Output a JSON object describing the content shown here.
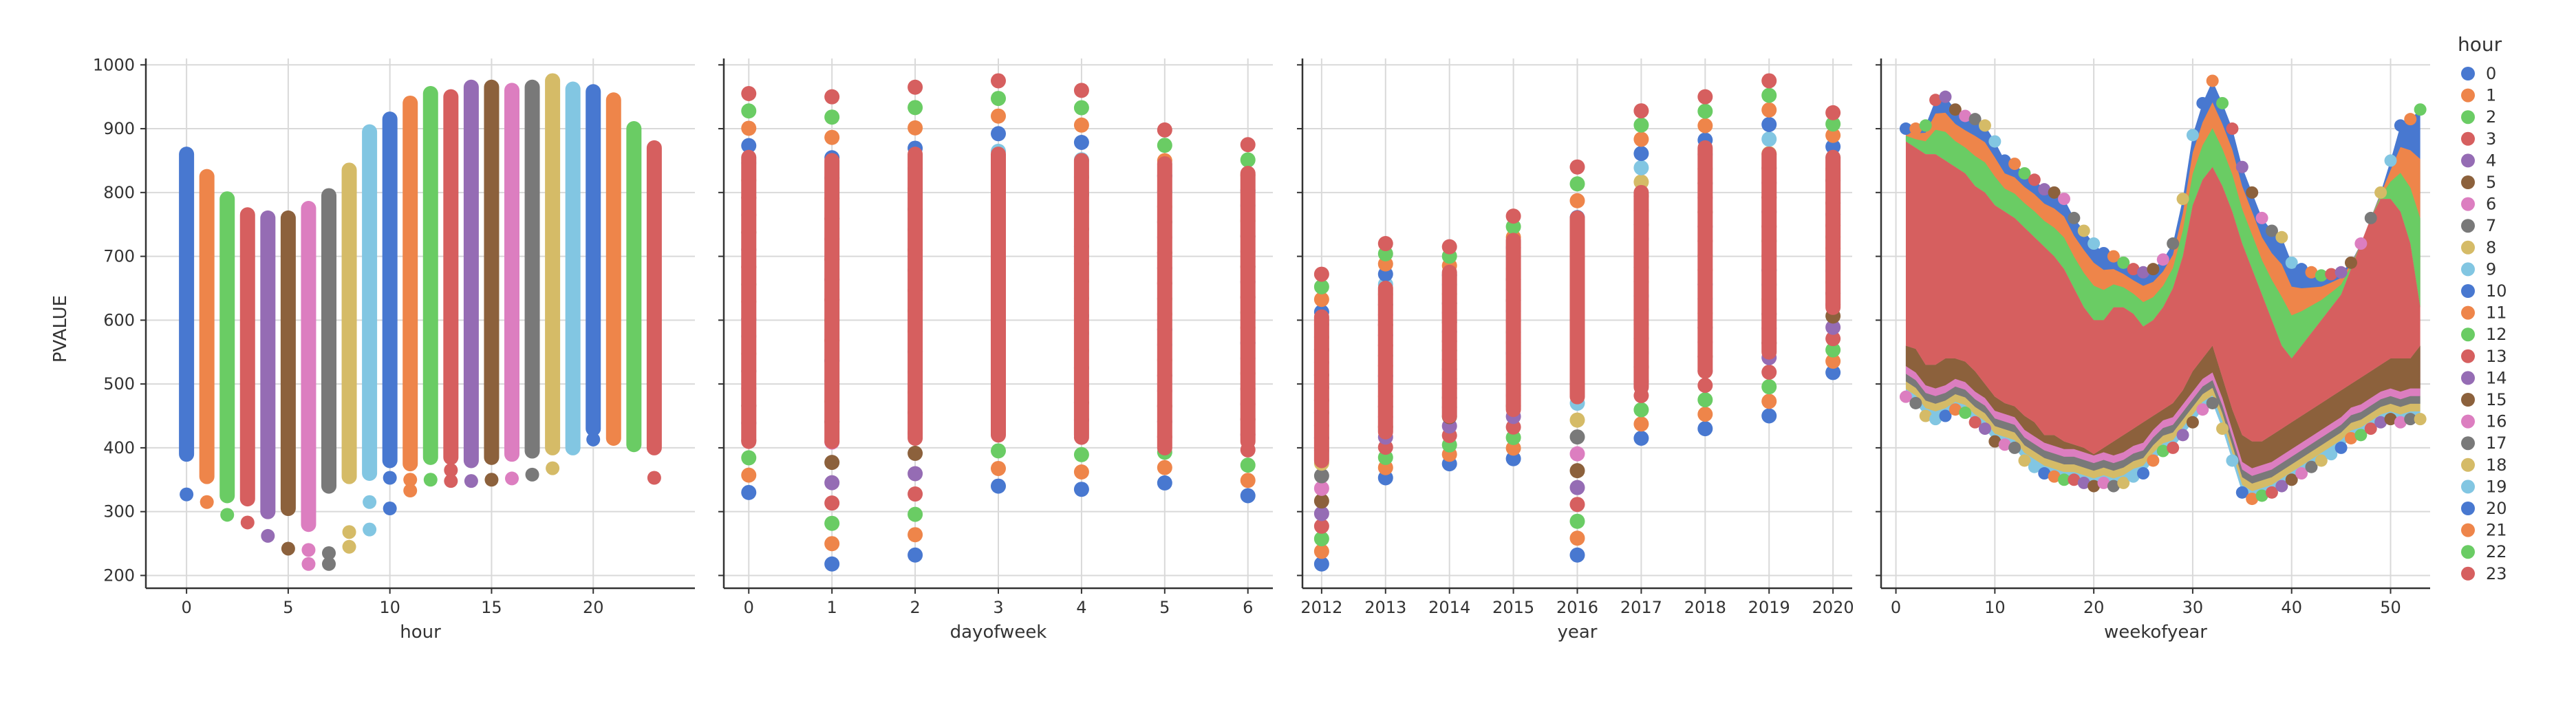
{
  "palette": [
    "#4878d0",
    "#ee854a",
    "#6acc64",
    "#d65f5f",
    "#956cb4",
    "#8c613c",
    "#dc7ec0",
    "#797979",
    "#d5bb67",
    "#82c6e2"
  ],
  "y_axis": {
    "label": "PVALUE",
    "ylim": [
      180,
      1010
    ],
    "ticks": [
      200,
      300,
      400,
      500,
      600,
      700,
      800,
      900,
      1000
    ]
  },
  "legend": {
    "title": "hour",
    "entries": [
      "0",
      "1",
      "2",
      "3",
      "4",
      "5",
      "6",
      "7",
      "8",
      "9",
      "10",
      "11",
      "12",
      "13",
      "14",
      "15",
      "16",
      "17",
      "18",
      "19",
      "20",
      "21",
      "22",
      "23"
    ]
  },
  "chart_data": [
    {
      "type": "scatter",
      "name": "hour",
      "xlabel": "hour",
      "ylabel": "PVALUE",
      "xlim": [
        -2,
        25
      ],
      "xticks": [
        0,
        5,
        10,
        15,
        20
      ],
      "hue": "hour",
      "columns": [
        {
          "x": 0,
          "lo": 390,
          "hi": 860,
          "outliers": [
            327
          ]
        },
        {
          "x": 1,
          "lo": 355,
          "hi": 825,
          "outliers": [
            315
          ]
        },
        {
          "x": 2,
          "lo": 325,
          "hi": 790,
          "outliers": [
            295
          ]
        },
        {
          "x": 3,
          "lo": 320,
          "hi": 765,
          "outliers": [
            283
          ]
        },
        {
          "x": 4,
          "lo": 300,
          "hi": 760,
          "outliers": [
            262
          ]
        },
        {
          "x": 5,
          "lo": 305,
          "hi": 760,
          "outliers": [
            242
          ]
        },
        {
          "x": 6,
          "lo": 280,
          "hi": 775,
          "outliers": [
            240,
            218
          ]
        },
        {
          "x": 7,
          "lo": 340,
          "hi": 795,
          "outliers": [
            235,
            218
          ]
        },
        {
          "x": 8,
          "lo": 355,
          "hi": 835,
          "outliers": [
            268,
            245
          ]
        },
        {
          "x": 9,
          "lo": 360,
          "hi": 895,
          "outliers": [
            315,
            272
          ]
        },
        {
          "x": 10,
          "lo": 380,
          "hi": 915,
          "outliers": [
            353,
            305
          ]
        },
        {
          "x": 11,
          "lo": 375,
          "hi": 940,
          "outliers": [
            350,
            333
          ]
        },
        {
          "x": 12,
          "lo": 385,
          "hi": 955,
          "outliers": [
            350
          ]
        },
        {
          "x": 13,
          "lo": 385,
          "hi": 950,
          "outliers": [
            365,
            348
          ]
        },
        {
          "x": 14,
          "lo": 380,
          "hi": 965,
          "outliers": [
            348
          ]
        },
        {
          "x": 15,
          "lo": 385,
          "hi": 965,
          "outliers": [
            350
          ]
        },
        {
          "x": 16,
          "lo": 390,
          "hi": 960,
          "outliers": [
            352
          ]
        },
        {
          "x": 17,
          "lo": 395,
          "hi": 965,
          "outliers": [
            358
          ]
        },
        {
          "x": 18,
          "lo": 400,
          "hi": 975,
          "outliers": [
            368
          ]
        },
        {
          "x": 19,
          "lo": 400,
          "hi": 962,
          "outliers": []
        },
        {
          "x": 20,
          "lo": 430,
          "hi": 958,
          "outliers": [
            413
          ]
        },
        {
          "x": 21,
          "lo": 415,
          "hi": 945,
          "outliers": []
        },
        {
          "x": 22,
          "lo": 405,
          "hi": 900,
          "outliers": []
        },
        {
          "x": 23,
          "lo": 400,
          "hi": 870,
          "outliers": [
            353
          ]
        }
      ]
    },
    {
      "type": "scatter",
      "name": "dayofweek",
      "xlabel": "dayofweek",
      "xlim": [
        -0.3,
        6.3
      ],
      "xticks": [
        0,
        1,
        2,
        3,
        4,
        5,
        6
      ],
      "hue": "hour",
      "columns": [
        {
          "x": 0,
          "lo": 330,
          "hi": 955,
          "red_lo": 410,
          "red_hi": 855
        },
        {
          "x": 1,
          "lo": 218,
          "hi": 950,
          "red_lo": 410,
          "red_hi": 850
        },
        {
          "x": 2,
          "lo": 232,
          "hi": 965,
          "red_lo": 415,
          "red_hi": 860
        },
        {
          "x": 3,
          "lo": 340,
          "hi": 975,
          "red_lo": 420,
          "red_hi": 860
        },
        {
          "x": 4,
          "lo": 335,
          "hi": 960,
          "red_lo": 420,
          "red_hi": 850
        },
        {
          "x": 5,
          "lo": 345,
          "hi": 898,
          "red_lo": 400,
          "red_hi": 845
        },
        {
          "x": 6,
          "lo": 325,
          "hi": 875,
          "red_lo": 410,
          "red_hi": 830
        }
      ]
    },
    {
      "type": "scatter",
      "name": "year",
      "xlabel": "year",
      "xlim": [
        2011.7,
        2020.3
      ],
      "xticks": [
        2012,
        2013,
        2014,
        2015,
        2016,
        2017,
        2018,
        2019,
        2020
      ],
      "hue": "hour",
      "columns": [
        {
          "x": 2012,
          "lo": 218,
          "hi": 672,
          "red_lo": 380,
          "red_hi": 605
        },
        {
          "x": 2013,
          "lo": 353,
          "hi": 720,
          "red_lo": 425,
          "red_hi": 650
        },
        {
          "x": 2014,
          "lo": 375,
          "hi": 715,
          "red_lo": 450,
          "red_hi": 675
        },
        {
          "x": 2015,
          "lo": 383,
          "hi": 763,
          "red_lo": 460,
          "red_hi": 725
        },
        {
          "x": 2016,
          "lo": 232,
          "hi": 840,
          "red_lo": 480,
          "red_hi": 760
        },
        {
          "x": 2017,
          "lo": 415,
          "hi": 928,
          "red_lo": 495,
          "red_hi": 800
        },
        {
          "x": 2018,
          "lo": 430,
          "hi": 950,
          "red_lo": 520,
          "red_hi": 870
        },
        {
          "x": 2019,
          "lo": 450,
          "hi": 975,
          "red_lo": 550,
          "red_hi": 860
        },
        {
          "x": 2020,
          "lo": 518,
          "hi": 925,
          "red_lo": 620,
          "red_hi": 855
        }
      ]
    },
    {
      "type": "area",
      "name": "weekofyear",
      "xlabel": "weekofyear",
      "xlim": [
        -1.5,
        54
      ],
      "xticks": [
        0,
        10,
        20,
        30,
        40,
        50
      ],
      "hue": "hour",
      "x": [
        1,
        2,
        3,
        4,
        5,
        6,
        7,
        8,
        9,
        10,
        11,
        12,
        13,
        14,
        15,
        16,
        17,
        18,
        19,
        20,
        21,
        22,
        23,
        24,
        25,
        26,
        27,
        28,
        29,
        30,
        31,
        32,
        33,
        34,
        35,
        36,
        37,
        38,
        39,
        40,
        41,
        42,
        43,
        44,
        45,
        46,
        47,
        48,
        49,
        50,
        51,
        52,
        53
      ],
      "top": [
        900,
        900,
        905,
        945,
        950,
        930,
        920,
        915,
        905,
        880,
        850,
        845,
        830,
        820,
        805,
        800,
        790,
        760,
        740,
        720,
        705,
        700,
        690,
        680,
        675,
        680,
        695,
        720,
        790,
        890,
        940,
        975,
        940,
        900,
        840,
        800,
        760,
        740,
        730,
        690,
        680,
        675,
        670,
        672,
        675,
        690,
        720,
        760,
        800,
        850,
        905,
        915,
        930
      ],
      "bottom": [
        480,
        470,
        450,
        445,
        450,
        460,
        455,
        440,
        430,
        410,
        405,
        400,
        380,
        370,
        360,
        355,
        350,
        350,
        345,
        340,
        345,
        340,
        345,
        355,
        360,
        380,
        395,
        400,
        420,
        440,
        460,
        470,
        430,
        380,
        330,
        320,
        325,
        330,
        340,
        350,
        360,
        370,
        380,
        390,
        400,
        415,
        420,
        430,
        440,
        445,
        440,
        445,
        445
      ],
      "red_top": [
        880,
        870,
        860,
        860,
        850,
        840,
        830,
        810,
        800,
        780,
        770,
        760,
        745,
        730,
        715,
        700,
        680,
        650,
        620,
        600,
        600,
        620,
        620,
        610,
        590,
        600,
        620,
        650,
        700,
        780,
        820,
        840,
        810,
        770,
        720,
        680,
        640,
        600,
        560,
        540,
        560,
        580,
        600,
        620,
        640,
        680,
        720,
        760,
        790,
        790,
        770,
        720,
        620
      ],
      "red_bottom": [
        560,
        555,
        530,
        530,
        540,
        540,
        535,
        520,
        500,
        480,
        470,
        465,
        450,
        440,
        420,
        420,
        410,
        405,
        400,
        390,
        400,
        410,
        420,
        430,
        440,
        450,
        460,
        470,
        490,
        520,
        540,
        560,
        510,
        460,
        420,
        410,
        410,
        420,
        430,
        440,
        450,
        460,
        470,
        480,
        490,
        500,
        510,
        520,
        530,
        540,
        540,
        540,
        560
      ]
    }
  ]
}
